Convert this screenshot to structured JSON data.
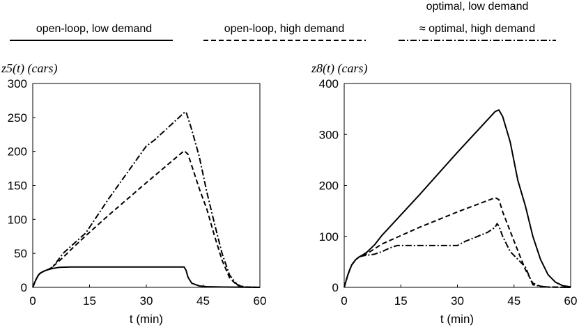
{
  "legend": [
    {
      "label": "open-loop, low demand",
      "style": "solid"
    },
    {
      "label": "open-loop, high demand",
      "style": "dashed"
    },
    {
      "label_line1": "optimal, low demand",
      "label_line2": "≈ optimal, high demand",
      "style": "dashdot"
    }
  ],
  "chart_data": [
    {
      "type": "line",
      "ylabel": "z5(t) (cars)",
      "xlabel": "t (min)",
      "xlim": [
        0,
        60
      ],
      "ylim": [
        0,
        300
      ],
      "xticks": [
        0,
        15,
        30,
        45,
        60
      ],
      "yticks": [
        0,
        50,
        100,
        150,
        200,
        250,
        300
      ],
      "grid": false,
      "series": [
        {
          "name": "open-loop, low demand",
          "style": "solid",
          "x": [
            0,
            0.5,
            1,
            1.5,
            2,
            3,
            4,
            5,
            6,
            7,
            10,
            20,
            30,
            40,
            40.5,
            41,
            42,
            44,
            46,
            50,
            60
          ],
          "y": [
            0,
            7,
            13,
            18,
            21,
            24,
            26,
            27.5,
            28.5,
            29.5,
            30,
            30,
            30,
            30,
            25,
            15,
            6,
            2,
            1,
            0.5,
            0
          ]
        },
        {
          "name": "open-loop, high demand",
          "style": "dashed",
          "x": [
            0,
            0.5,
            1,
            1.5,
            2,
            3,
            4,
            5,
            6,
            8,
            10,
            14,
            20,
            30,
            40,
            41,
            44,
            46,
            48,
            50,
            52,
            54,
            56,
            60
          ],
          "y": [
            0,
            7,
            13,
            18,
            21,
            24,
            26,
            29,
            34,
            44,
            55,
            76,
            106,
            154,
            201,
            196,
            145,
            115,
            76,
            40,
            14,
            3,
            0.5,
            0
          ]
        },
        {
          "name": "optimal, low demand / ≈ optimal, high demand",
          "style": "dashdot",
          "x": [
            0,
            0.5,
            1,
            1.5,
            2,
            3,
            4,
            5,
            6,
            8,
            10,
            14,
            20,
            30,
            32,
            40,
            40.5,
            42,
            44,
            46,
            48,
            50,
            52,
            54,
            56,
            60
          ],
          "y": [
            0,
            7,
            13,
            18,
            21,
            24,
            26,
            29,
            35,
            50,
            60,
            80,
            130,
            208,
            216,
            257,
            258,
            232,
            192,
            140,
            94,
            50,
            18,
            4,
            0.5,
            0
          ]
        }
      ]
    },
    {
      "type": "line",
      "ylabel": "z8(t) (cars)",
      "xlabel": "t (min)",
      "xlim": [
        0,
        60
      ],
      "ylim": [
        0,
        400
      ],
      "xticks": [
        0,
        15,
        30,
        45,
        60
      ],
      "yticks": [
        0,
        100,
        200,
        300,
        400
      ],
      "grid": false,
      "series": [
        {
          "name": "open-loop, low demand",
          "style": "solid",
          "x": [
            0,
            0.5,
            1,
            1.5,
            2,
            3,
            4,
            5,
            6,
            8,
            10,
            20,
            30,
            40,
            41,
            42,
            44,
            46,
            48,
            50,
            52,
            54,
            56,
            58,
            60
          ],
          "y": [
            0,
            13,
            25,
            35,
            44,
            54,
            60,
            64,
            69,
            83,
            102,
            182,
            265,
            345,
            348,
            335,
            285,
            210,
            160,
            100,
            55,
            25,
            10,
            3,
            1
          ]
        },
        {
          "name": "open-loop, high demand",
          "style": "dashed",
          "x": [
            0,
            0.5,
            1,
            1.5,
            2,
            3,
            4,
            5,
            6,
            10,
            20,
            30,
            40,
            41,
            42,
            44,
            46,
            48,
            50,
            52,
            54,
            60
          ],
          "y": [
            0,
            13,
            25,
            35,
            44,
            54,
            60,
            62,
            66,
            85,
            118,
            148,
            176,
            172,
            148,
            110,
            72,
            35,
            8,
            2,
            0.5,
            0
          ]
        },
        {
          "name": "optimal, low demand / ≈ optimal, high demand",
          "style": "dashdot",
          "x": [
            0,
            0.5,
            1,
            1.5,
            2,
            3,
            4,
            5,
            6,
            8,
            10,
            12,
            14,
            20,
            30,
            32,
            38,
            40,
            40.5,
            41,
            42,
            44,
            46,
            48,
            50,
            52,
            54,
            60
          ],
          "y": [
            0,
            13,
            25,
            35,
            44,
            54,
            60,
            62,
            63,
            65,
            70,
            77,
            82,
            82,
            82,
            90,
            108,
            118,
            125,
            120,
            100,
            70,
            55,
            40,
            5,
            2,
            0.5,
            0
          ]
        }
      ]
    }
  ]
}
